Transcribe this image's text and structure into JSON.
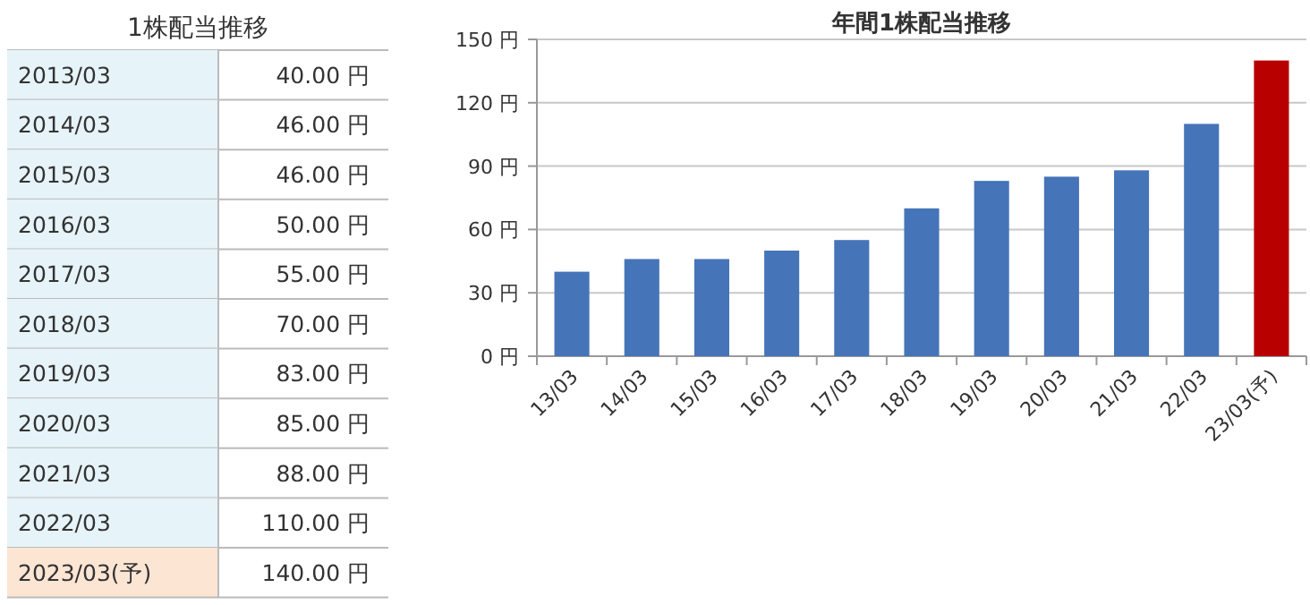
{
  "chart_data": [
    {
      "type": "other",
      "title": "1株配当推移",
      "categories": [
        "2013/03",
        "2014/03",
        "2015/03",
        "2016/03",
        "2017/03",
        "2018/03",
        "2019/03",
        "2020/03",
        "2021/03",
        "2022/03",
        "2023/03(予)"
      ],
      "values": [
        40,
        46,
        46,
        50,
        55,
        70,
        83,
        85,
        88,
        110,
        140
      ],
      "value_labels": [
        "40.00 円",
        "46.00 円",
        "46.00 円",
        "50.00 円",
        "55.00 円",
        "70.00 円",
        "83.00 円",
        "85.00 円",
        "88.00 円",
        "110.00 円",
        "140.00 円"
      ],
      "colors": [
        "#e6f3f8",
        "#e6f3f8",
        "#e6f3f8",
        "#e6f3f8",
        "#e6f3f8",
        "#e6f3f8",
        "#e6f3f8",
        "#e6f3f8",
        "#e6f3f8",
        "#e6f3f8",
        "#fde5d4"
      ]
    },
    {
      "type": "bar",
      "title": "年間1株配当推移",
      "categories": [
        "13/03",
        "14/03",
        "15/03",
        "16/03",
        "17/03",
        "18/03",
        "19/03",
        "20/03",
        "21/03",
        "22/03",
        "23/03(予)"
      ],
      "values": [
        40,
        46,
        46,
        50,
        55,
        70,
        83,
        85,
        88,
        110,
        140
      ],
      "colors": [
        "#4674b8",
        "#4674b8",
        "#4674b8",
        "#4674b8",
        "#4674b8",
        "#4674b8",
        "#4674b8",
        "#4674b8",
        "#4674b8",
        "#4674b8",
        "#b80000"
      ],
      "ylim": [
        0,
        150
      ],
      "yticks": [
        {
          "value": 0,
          "label": "0 円"
        },
        {
          "value": 30,
          "label": "30 円"
        },
        {
          "value": 60,
          "label": "60 円"
        },
        {
          "value": 90,
          "label": "90 円"
        },
        {
          "value": 120,
          "label": "120 円"
        },
        {
          "value": 150,
          "label": "150 円"
        }
      ],
      "grid": "y"
    }
  ]
}
